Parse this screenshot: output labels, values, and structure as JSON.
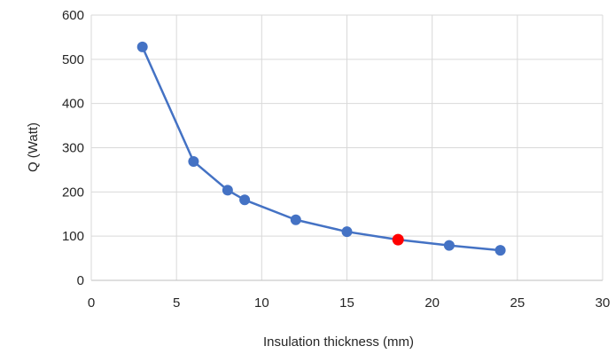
{
  "chart_data": {
    "type": "line",
    "title": "",
    "xlabel": "Insulation thickness (mm)",
    "ylabel": "Q (Watt)",
    "xlim": [
      0,
      30
    ],
    "ylim": [
      0,
      600
    ],
    "xticks": [
      0,
      5,
      10,
      15,
      20,
      25,
      30
    ],
    "yticks": [
      0,
      100,
      200,
      300,
      400,
      500,
      600
    ],
    "grid": true,
    "legend": "none",
    "series": [
      {
        "x": [
          3,
          6,
          8,
          9,
          12,
          15,
          18,
          21,
          24
        ],
        "y": [
          528,
          269,
          204,
          182,
          137,
          110,
          92,
          79,
          68
        ],
        "color": "#4472c4",
        "highlight_index": 6,
        "highlight_color": "#ff0000"
      }
    ]
  }
}
